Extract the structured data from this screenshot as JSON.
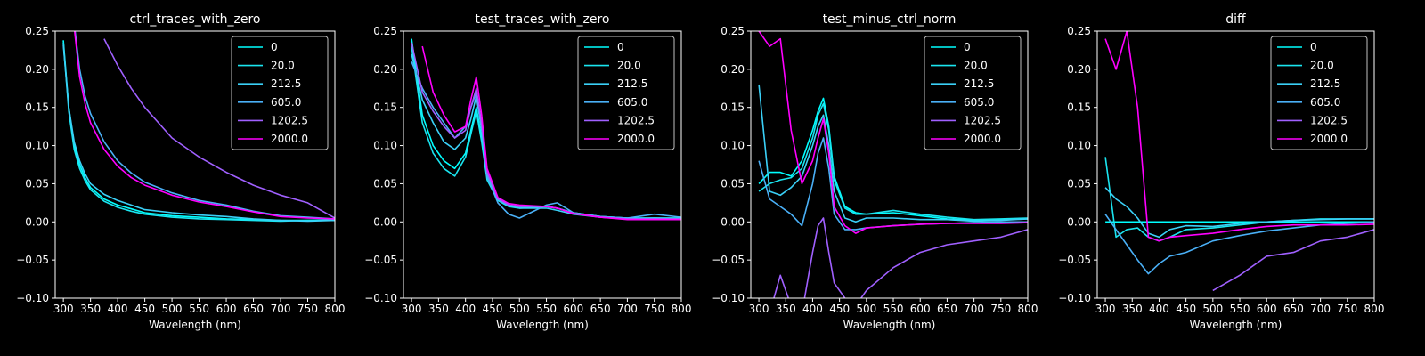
{
  "figure": {
    "background": "#000000",
    "foreground": "#ffffff",
    "series_names": [
      "0",
      "20.0",
      "212.5",
      "605.0",
      "1202.5",
      "2000.0"
    ],
    "series_colors": [
      "#00ffff",
      "#1ae5f0",
      "#3ad0f7",
      "#4ab0f7",
      "#a060ff",
      "#ff00ff"
    ]
  },
  "chart_data": [
    {
      "type": "line",
      "title": "ctrl_traces_with_zero",
      "xlabel": "Wavelength (nm)",
      "ylabel": "",
      "xlim": [
        285,
        800
      ],
      "ylim": [
        -0.1,
        0.25
      ],
      "xticks": [
        300,
        350,
        400,
        450,
        500,
        550,
        600,
        650,
        700,
        750,
        800
      ],
      "yticks": [
        -0.1,
        -0.05,
        0.0,
        0.05,
        0.1,
        0.15,
        0.2,
        0.25
      ],
      "xtick_labels": [
        "300",
        "350",
        "400",
        "450",
        "500",
        "550",
        "600",
        "650",
        "700",
        "750",
        "800"
      ],
      "ytick_labels": [
        "−0.10",
        "−0.05",
        "0.00",
        "0.05",
        "0.10",
        "0.15",
        "0.20",
        "0.25"
      ],
      "grid": false,
      "legend": "top-right",
      "x": [
        300,
        310,
        320,
        330,
        340,
        350,
        375,
        400,
        425,
        450,
        500,
        550,
        600,
        650,
        700,
        750,
        800
      ],
      "series": [
        {
          "name": "0",
          "values": [
            0.238,
            0.15,
            0.1,
            0.075,
            0.058,
            0.045,
            0.03,
            0.022,
            0.017,
            0.012,
            0.008,
            0.006,
            0.004,
            0.003,
            0.002,
            0.002,
            0.003
          ]
        },
        {
          "name": "20.0",
          "values": [
            0.235,
            0.145,
            0.095,
            0.07,
            0.054,
            0.042,
            0.027,
            0.019,
            0.014,
            0.01,
            0.006,
            0.004,
            0.003,
            0.002,
            0.001,
            0.002,
            0.002
          ]
        },
        {
          "name": "212.5",
          "values": [
            0.232,
            0.15,
            0.105,
            0.08,
            0.063,
            0.05,
            0.036,
            0.028,
            0.022,
            0.016,
            0.012,
            0.009,
            0.007,
            0.004,
            0.002,
            0.001,
            0.002
          ]
        },
        {
          "name": "605.0",
          "values": [
            null,
            null,
            0.26,
            0.2,
            0.165,
            0.142,
            0.105,
            0.08,
            0.064,
            0.052,
            0.038,
            0.028,
            0.022,
            0.014,
            0.008,
            0.006,
            0.004
          ]
        },
        {
          "name": "1202.5",
          "values": [
            null,
            null,
            null,
            null,
            null,
            null,
            0.24,
            0.205,
            0.175,
            0.15,
            0.11,
            0.085,
            0.065,
            0.048,
            0.035,
            0.025,
            0.005
          ]
        },
        {
          "name": "2000.0",
          "values": [
            null,
            null,
            0.255,
            0.19,
            0.155,
            0.13,
            0.095,
            0.073,
            0.058,
            0.048,
            0.035,
            0.026,
            0.02,
            0.013,
            0.007,
            0.005,
            0.004
          ]
        }
      ]
    },
    {
      "type": "line",
      "title": "test_traces_with_zero",
      "xlabel": "Wavelength (nm)",
      "ylabel": "",
      "xlim": [
        285,
        800
      ],
      "ylim": [
        -0.1,
        0.25
      ],
      "xticks": [
        300,
        350,
        400,
        450,
        500,
        550,
        600,
        650,
        700,
        750,
        800
      ],
      "yticks": [
        -0.1,
        -0.05,
        0.0,
        0.05,
        0.1,
        0.15,
        0.2,
        0.25
      ],
      "xtick_labels": [
        "300",
        "350",
        "400",
        "450",
        "500",
        "550",
        "600",
        "650",
        "700",
        "750",
        "800"
      ],
      "ytick_labels": [
        "−0.10",
        "−0.05",
        "0.00",
        "0.05",
        "0.10",
        "0.15",
        "0.20",
        "0.25"
      ],
      "grid": false,
      "legend": "top-right",
      "x": [
        300,
        320,
        340,
        360,
        380,
        400,
        410,
        420,
        430,
        440,
        460,
        480,
        500,
        550,
        570,
        600,
        650,
        700,
        750,
        800
      ],
      "series": [
        {
          "name": "0",
          "values": [
            0.24,
            0.14,
            0.1,
            0.08,
            0.07,
            0.09,
            0.12,
            0.15,
            0.11,
            0.06,
            0.03,
            0.022,
            0.02,
            0.02,
            0.018,
            0.012,
            0.007,
            0.005,
            0.005,
            0.005
          ]
        },
        {
          "name": "20.0",
          "values": [
            0.23,
            0.13,
            0.09,
            0.07,
            0.06,
            0.085,
            0.115,
            0.145,
            0.105,
            0.055,
            0.028,
            0.02,
            0.018,
            0.02,
            0.018,
            0.012,
            0.007,
            0.005,
            0.005,
            0.005
          ]
        },
        {
          "name": "212.5",
          "values": [
            0.22,
            0.16,
            0.13,
            0.105,
            0.095,
            0.11,
            0.135,
            0.165,
            0.12,
            0.062,
            0.03,
            0.022,
            0.018,
            0.018,
            0.015,
            0.01,
            0.006,
            0.004,
            0.005,
            0.004
          ]
        },
        {
          "name": "605.0",
          "values": [
            0.21,
            0.175,
            0.15,
            0.13,
            0.11,
            0.125,
            0.15,
            0.17,
            0.125,
            0.06,
            0.025,
            0.01,
            0.005,
            0.022,
            0.025,
            0.012,
            0.007,
            0.005,
            0.01,
            0.006
          ]
        },
        {
          "name": "1202.5",
          "values": [
            0.235,
            0.17,
            0.145,
            0.125,
            0.11,
            0.12,
            0.15,
            0.175,
            0.128,
            0.065,
            0.03,
            0.022,
            0.02,
            0.02,
            0.018,
            0.011,
            0.006,
            0.004,
            0.004,
            0.004
          ]
        },
        {
          "name": "2000.0",
          "values": [
            null,
            0.23,
            0.17,
            0.14,
            0.118,
            0.125,
            0.16,
            0.19,
            0.14,
            0.07,
            0.032,
            0.024,
            0.022,
            0.02,
            0.018,
            0.011,
            0.006,
            0.003,
            0.003,
            0.003
          ]
        }
      ]
    },
    {
      "type": "line",
      "title": "test_minus_ctrl_norm",
      "xlabel": "Wavelength (nm)",
      "ylabel": "",
      "xlim": [
        285,
        800
      ],
      "ylim": [
        -0.1,
        0.25
      ],
      "xticks": [
        300,
        350,
        400,
        450,
        500,
        550,
        600,
        650,
        700,
        750,
        800
      ],
      "yticks": [
        -0.1,
        -0.05,
        0.0,
        0.05,
        0.1,
        0.15,
        0.2,
        0.25
      ],
      "xtick_labels": [
        "300",
        "350",
        "400",
        "450",
        "500",
        "550",
        "600",
        "650",
        "700",
        "750",
        "800"
      ],
      "ytick_labels": [
        "−0.10",
        "−0.05",
        "0.00",
        "0.05",
        "0.10",
        "0.15",
        "0.20",
        "0.25"
      ],
      "grid": false,
      "legend": "top-right",
      "x": [
        300,
        320,
        340,
        360,
        380,
        400,
        410,
        420,
        430,
        440,
        460,
        480,
        500,
        550,
        600,
        650,
        700,
        750,
        800
      ],
      "series": [
        {
          "name": "0",
          "values": [
            0.05,
            0.065,
            0.065,
            0.06,
            0.08,
            0.12,
            0.145,
            0.162,
            0.125,
            0.06,
            0.02,
            0.012,
            0.01,
            0.012,
            0.008,
            0.004,
            0.002,
            0.003,
            0.004
          ]
        },
        {
          "name": "20.0",
          "values": [
            0.04,
            0.05,
            0.055,
            0.058,
            0.07,
            0.11,
            0.14,
            0.155,
            0.12,
            0.055,
            0.018,
            0.01,
            0.01,
            0.015,
            0.01,
            0.006,
            0.003,
            0.004,
            0.005
          ]
        },
        {
          "name": "212.5",
          "values": [
            0.18,
            0.04,
            0.035,
            0.045,
            0.06,
            0.1,
            0.125,
            0.14,
            0.1,
            0.04,
            0.005,
            0.0,
            0.005,
            0.005,
            0.003,
            0.003,
            0.001,
            0.002,
            0.004
          ]
        },
        {
          "name": "605.0",
          "values": [
            0.08,
            0.03,
            0.02,
            0.01,
            -0.005,
            0.05,
            0.09,
            0.11,
            0.07,
            0.01,
            -0.01,
            -0.01,
            -0.008,
            -0.005,
            -0.003,
            -0.002,
            -0.001,
            0.0,
            0.0
          ]
        },
        {
          "name": "1202.5",
          "values": [
            null,
            -0.12,
            -0.07,
            -0.11,
            -0.12,
            -0.04,
            -0.005,
            0.005,
            -0.04,
            -0.08,
            -0.1,
            -0.11,
            -0.09,
            -0.06,
            -0.04,
            -0.03,
            -0.025,
            -0.02,
            -0.01
          ]
        },
        {
          "name": "2000.0",
          "values": [
            0.25,
            0.23,
            0.24,
            0.12,
            0.05,
            0.08,
            0.11,
            0.135,
            0.09,
            0.02,
            -0.005,
            -0.015,
            -0.008,
            -0.005,
            -0.003,
            -0.002,
            -0.002,
            -0.002,
            -0.001
          ]
        }
      ]
    },
    {
      "type": "line",
      "title": "diff",
      "xlabel": "Wavelength (nm)",
      "ylabel": "",
      "xlim": [
        285,
        800
      ],
      "ylim": [
        -0.1,
        0.25
      ],
      "xticks": [
        300,
        350,
        400,
        450,
        500,
        550,
        600,
        650,
        700,
        750,
        800
      ],
      "yticks": [
        -0.1,
        -0.05,
        0.0,
        0.05,
        0.1,
        0.15,
        0.2,
        0.25
      ],
      "xtick_labels": [
        "300",
        "350",
        "400",
        "450",
        "500",
        "550",
        "600",
        "650",
        "700",
        "750",
        "800"
      ],
      "ytick_labels": [
        "−0.10",
        "−0.05",
        "0.00",
        "0.05",
        "0.10",
        "0.15",
        "0.20",
        "0.25"
      ],
      "grid": false,
      "legend": "top-right",
      "x": [
        300,
        320,
        340,
        360,
        380,
        400,
        420,
        450,
        500,
        550,
        600,
        650,
        700,
        750,
        800
      ],
      "series": [
        {
          "name": "0",
          "values": [
            0.0,
            0.0,
            0.0,
            0.0,
            0.0,
            0.0,
            0.0,
            0.0,
            0.0,
            0.0,
            0.0,
            0.0,
            0.0,
            0.0,
            0.0
          ]
        },
        {
          "name": "20.0",
          "values": [
            0.085,
            -0.02,
            -0.01,
            -0.008,
            -0.02,
            -0.025,
            -0.02,
            -0.01,
            -0.008,
            -0.004,
            0.0,
            0.002,
            0.004,
            0.004,
            0.004
          ]
        },
        {
          "name": "212.5",
          "values": [
            0.045,
            0.03,
            0.02,
            0.005,
            -0.015,
            -0.02,
            -0.01,
            -0.005,
            -0.006,
            -0.002,
            0.0,
            0.002,
            0.003,
            0.004,
            0.004
          ]
        },
        {
          "name": "605.0",
          "values": [
            0.01,
            -0.01,
            -0.03,
            -0.05,
            -0.068,
            -0.055,
            -0.045,
            -0.04,
            -0.025,
            -0.018,
            -0.012,
            -0.008,
            -0.004,
            -0.002,
            0.0
          ]
        },
        {
          "name": "1202.5",
          "values": [
            null,
            null,
            null,
            null,
            null,
            null,
            null,
            null,
            -0.09,
            -0.07,
            -0.045,
            -0.04,
            -0.025,
            -0.02,
            -0.01
          ]
        },
        {
          "name": "2000.0",
          "values": [
            0.24,
            0.2,
            0.25,
            0.15,
            -0.02,
            -0.025,
            -0.02,
            -0.018,
            -0.015,
            -0.01,
            -0.006,
            -0.004,
            -0.004,
            -0.004,
            -0.003
          ]
        }
      ]
    }
  ]
}
